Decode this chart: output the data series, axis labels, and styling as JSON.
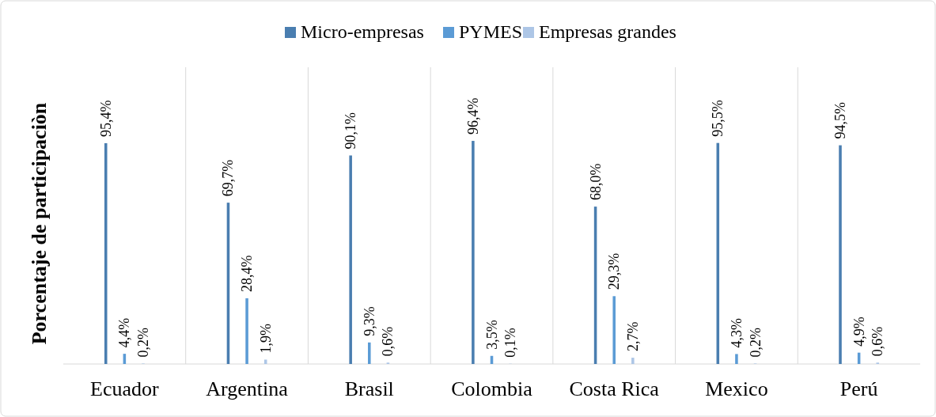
{
  "chart_data": {
    "type": "bar",
    "ylabel": "Porcentaje de participaciòn",
    "categories": [
      "Ecuador",
      "Argentina",
      "Brasil",
      "Colombia",
      "Costa Rica",
      "Mexico",
      "Perú"
    ],
    "series": [
      {
        "name": "Micro-empresas",
        "color": "#4a7eb0",
        "values": [
          95.4,
          69.7,
          90.1,
          96.4,
          68.0,
          95.5,
          94.5
        ],
        "value_labels": [
          "95,4%",
          "69,7%",
          "90,1%",
          "96,4%",
          "68,0%",
          "95,5%",
          "94,5%"
        ]
      },
      {
        "name": "PYMES",
        "color": "#5b9bd5",
        "values": [
          4.4,
          28.4,
          9.3,
          3.5,
          29.3,
          4.3,
          4.9
        ],
        "value_labels": [
          "4,4%",
          "28,4%",
          "9,3%",
          "3,5%",
          "29,3%",
          "4,3%",
          "4,9%"
        ]
      },
      {
        "name": "Empresas grandes",
        "color": "#adc6e6",
        "values": [
          0.2,
          1.9,
          0.6,
          0.1,
          2.7,
          0.2,
          0.6
        ],
        "value_labels": [
          "0,2%",
          "1,9%",
          "0,6%",
          "0,1%",
          "2,7%",
          "0,2%",
          "0,6%"
        ]
      }
    ],
    "grid": "x",
    "legend": "top"
  }
}
